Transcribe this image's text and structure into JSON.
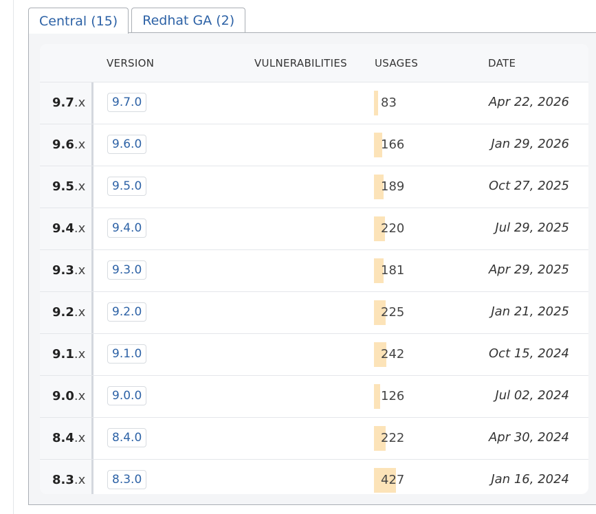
{
  "tabs": [
    {
      "label": "Central (15)",
      "active": true
    },
    {
      "label": "Redhat GA (2)",
      "active": false
    }
  ],
  "table": {
    "headers": {
      "version": "VERSION",
      "vulnerabilities": "VULNERABILITIES",
      "usages": "USAGES",
      "date": "DATE"
    },
    "max_usage": 427,
    "rows": [
      {
        "group_major": "9.7",
        "group_minor": ".x",
        "version": "9.7.0",
        "usages": 83,
        "date": "Apr 22, 2026"
      },
      {
        "group_major": "9.6",
        "group_minor": ".x",
        "version": "9.6.0",
        "usages": 166,
        "date": "Jan 29, 2026"
      },
      {
        "group_major": "9.5",
        "group_minor": ".x",
        "version": "9.5.0",
        "usages": 189,
        "date": "Oct 27, 2025"
      },
      {
        "group_major": "9.4",
        "group_minor": ".x",
        "version": "9.4.0",
        "usages": 220,
        "date": "Jul 29, 2025"
      },
      {
        "group_major": "9.3",
        "group_minor": ".x",
        "version": "9.3.0",
        "usages": 181,
        "date": "Apr 29, 2025"
      },
      {
        "group_major": "9.2",
        "group_minor": ".x",
        "version": "9.2.0",
        "usages": 225,
        "date": "Jan 21, 2025"
      },
      {
        "group_major": "9.1",
        "group_minor": ".x",
        "version": "9.1.0",
        "usages": 242,
        "date": "Oct 15, 2024"
      },
      {
        "group_major": "9.0",
        "group_minor": ".x",
        "version": "9.0.0",
        "usages": 126,
        "date": "Jul 02, 2024"
      },
      {
        "group_major": "8.4",
        "group_minor": ".x",
        "version": "8.4.0",
        "usages": 222,
        "date": "Apr 30, 2024"
      },
      {
        "group_major": "8.3",
        "group_minor": ".x",
        "version": "8.3.0",
        "usages": 427,
        "date": "Jan 16, 2024"
      }
    ]
  },
  "colors": {
    "link": "#2d62a6",
    "usage_bar": "#fce3b8"
  }
}
